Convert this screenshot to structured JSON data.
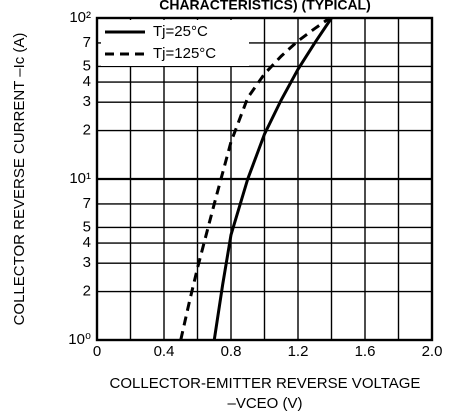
{
  "chart_data": {
    "type": "line",
    "title": "CHARACTERISTICS) (TYPICAL)",
    "xlabel": [
      "COLLECTOR-EMITTER REVERSE VOLTAGE",
      "–VCEO (V)"
    ],
    "ylabel": "COLLECTOR REVERSE CURRENT    –Ic (A)",
    "log_y": true,
    "grid": true,
    "legend": "upper left",
    "xlim": [
      0,
      2.0
    ],
    "xticks": [
      0,
      0.4,
      0.8,
      1.2,
      1.6,
      {
        "value": 2.0,
        "label": "2.0"
      }
    ],
    "xminor": [
      0.2,
      0.6,
      1.0,
      1.4,
      1.8
    ],
    "ylim": [
      1,
      100
    ],
    "yticks": [
      {
        "value": 1,
        "label": "10⁰"
      },
      2,
      3,
      4,
      5,
      7,
      {
        "value": 10,
        "label": "10¹"
      },
      {
        "value": 20,
        "label": "2"
      },
      {
        "value": 30,
        "label": "3"
      },
      {
        "value": 40,
        "label": "4"
      },
      {
        "value": 50,
        "label": "5"
      },
      {
        "value": 70,
        "label": "7"
      },
      {
        "value": 100,
        "label": "10²"
      }
    ],
    "series": [
      {
        "name": "Tj=25°C",
        "color": "#000000",
        "dash": false,
        "x": [
          0.7,
          0.75,
          0.8,
          0.9,
          1.0,
          1.1,
          1.2,
          1.3,
          1.4
        ],
        "values": [
          1,
          2.2,
          4.5,
          10,
          19,
          31,
          48,
          70,
          100
        ]
      },
      {
        "name": "Tj=125°C",
        "color": "#000000",
        "dash": true,
        "x": [
          0.5,
          0.55,
          0.6,
          0.7,
          0.8,
          0.9,
          1.0,
          1.1,
          1.2,
          1.3,
          1.39
        ],
        "values": [
          1,
          1.7,
          2.8,
          7,
          17,
          32,
          45,
          58,
          72,
          86,
          100
        ]
      }
    ]
  }
}
